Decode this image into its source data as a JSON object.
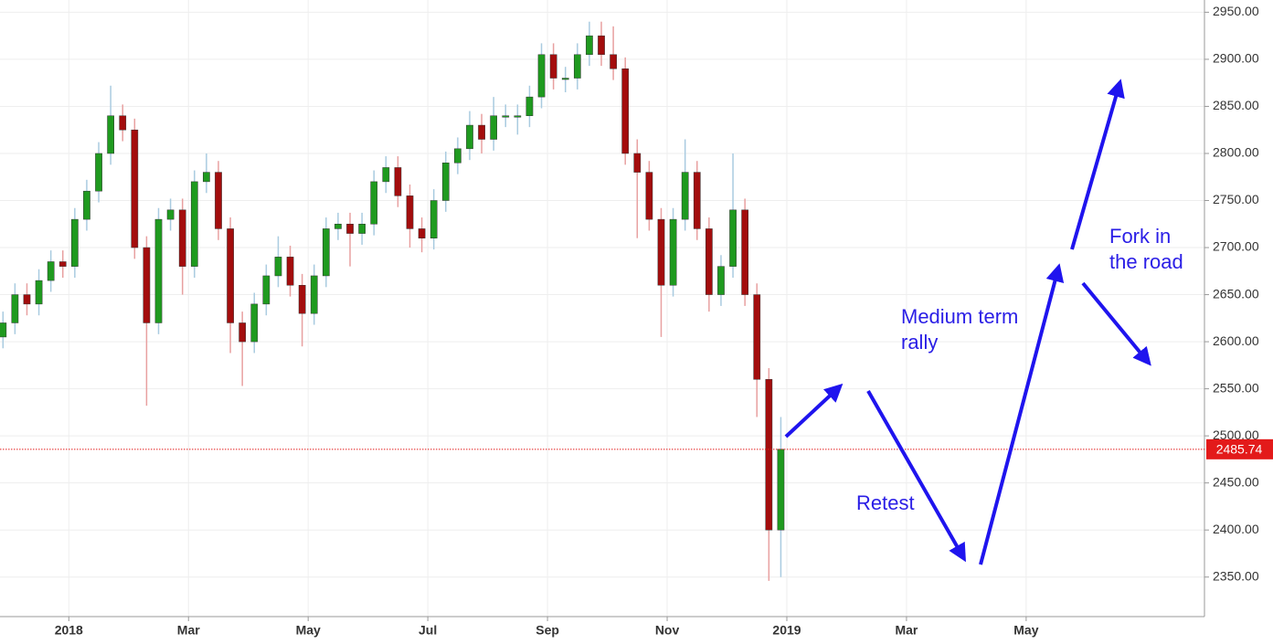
{
  "chart_data": {
    "type": "candlestick",
    "x": [
      -1.1,
      -0.9,
      -0.7,
      -0.5,
      -0.3,
      -0.1,
      0.1,
      0.3,
      0.5,
      0.7,
      0.9,
      1.1,
      1.3,
      1.5,
      1.7,
      1.9,
      2.1,
      2.3,
      2.5,
      2.7,
      2.9,
      3.1,
      3.3,
      3.5,
      3.7,
      3.9,
      4.1,
      4.3,
      4.5,
      4.7,
      4.9,
      5.1,
      5.3,
      5.5,
      5.7,
      5.9,
      6.1,
      6.3,
      6.5,
      6.7,
      6.9,
      7.1,
      7.3,
      7.5,
      7.7,
      7.9,
      8.1,
      8.3,
      8.5,
      8.7,
      8.9,
      9.1,
      9.3,
      9.5,
      9.7,
      9.9,
      10.1,
      10.3,
      10.5,
      10.7,
      10.9,
      11.1,
      11.3,
      11.5,
      11.7,
      11.9
    ],
    "open": [
      2605,
      2620,
      2650,
      2640,
      2665,
      2685,
      2680,
      2730,
      2760,
      2800,
      2840,
      2825,
      2700,
      2620,
      2730,
      2740,
      2680,
      2770,
      2780,
      2720,
      2620,
      2600,
      2640,
      2670,
      2690,
      2660,
      2630,
      2670,
      2720,
      2725,
      2715,
      2725,
      2770,
      2785,
      2755,
      2720,
      2710,
      2750,
      2790,
      2805,
      2830,
      2815,
      2840,
      2840,
      2840,
      2860,
      2905,
      2880,
      2880,
      2905,
      2925,
      2905,
      2890,
      2800,
      2780,
      2730,
      2660,
      2730,
      2780,
      2720,
      2650,
      2680,
      2740,
      2650,
      2560,
      2400
    ],
    "high": [
      2632,
      2662,
      2662,
      2677,
      2697,
      2697,
      2742,
      2772,
      2812,
      2872,
      2852,
      2837,
      2712,
      2742,
      2752,
      2752,
      2782,
      2800,
      2792,
      2732,
      2632,
      2652,
      2682,
      2712,
      2702,
      2672,
      2682,
      2732,
      2737,
      2737,
      2737,
      2782,
      2797,
      2797,
      2767,
      2732,
      2762,
      2802,
      2817,
      2845,
      2842,
      2860,
      2852,
      2852,
      2872,
      2917,
      2917,
      2892,
      2917,
      2940,
      2940,
      2935,
      2902,
      2815,
      2792,
      2742,
      2742,
      2815,
      2792,
      2732,
      2692,
      2800,
      2752,
      2662,
      2572,
      2520
    ],
    "low": [
      2593,
      2608,
      2628,
      2628,
      2653,
      2668,
      2668,
      2718,
      2748,
      2788,
      2813,
      2688,
      2532,
      2608,
      2718,
      2650,
      2668,
      2758,
      2708,
      2588,
      2553,
      2588,
      2628,
      2658,
      2648,
      2595,
      2618,
      2658,
      2708,
      2680,
      2703,
      2713,
      2758,
      2743,
      2700,
      2695,
      2698,
      2738,
      2778,
      2793,
      2800,
      2803,
      2828,
      2820,
      2828,
      2848,
      2868,
      2865,
      2868,
      2893,
      2893,
      2878,
      2788,
      2710,
      2718,
      2605,
      2648,
      2718,
      2708,
      2632,
      2638,
      2668,
      2638,
      2520,
      2346,
      2350
    ],
    "close": [
      2620,
      2650,
      2640,
      2665,
      2685,
      2680,
      2730,
      2760,
      2800,
      2840,
      2825,
      2700,
      2620,
      2730,
      2740,
      2680,
      2770,
      2780,
      2720,
      2620,
      2600,
      2640,
      2670,
      2690,
      2660,
      2630,
      2670,
      2720,
      2725,
      2715,
      2725,
      2770,
      2785,
      2755,
      2720,
      2710,
      2750,
      2790,
      2805,
      2830,
      2815,
      2840,
      2840,
      2840,
      2860,
      2905,
      2880,
      2880,
      2905,
      2925,
      2905,
      2890,
      2800,
      2780,
      2730,
      2660,
      2730,
      2780,
      2720,
      2650,
      2680,
      2740,
      2650,
      2560,
      2400,
      2485.74
    ],
    "up_color": "#1f9a1f",
    "down_color": "#a30d0d",
    "up_wick_color": "#a9cbe0",
    "down_wick_color": "#e8a0a0",
    "last_price": 2485.74,
    "last_price_color": "#e31a1a",
    "xlim": [
      -1.15,
      18.98
    ],
    "ylim": [
      2308,
      2963
    ],
    "xticks": [
      {
        "value": 0,
        "label": "2018"
      },
      {
        "value": 2,
        "label": "Mar"
      },
      {
        "value": 4,
        "label": "May"
      },
      {
        "value": 6,
        "label": "Jul"
      },
      {
        "value": 8,
        "label": "Sep"
      },
      {
        "value": 10,
        "label": "Nov"
      },
      {
        "value": 12,
        "label": "2019"
      },
      {
        "value": 14,
        "label": "Mar"
      },
      {
        "value": 16,
        "label": "May"
      }
    ],
    "yticks": [
      {
        "value": 2350,
        "label": "2350.00"
      },
      {
        "value": 2400,
        "label": "2400.00"
      },
      {
        "value": 2450,
        "label": "2450.00"
      },
      {
        "value": 2500,
        "label": "2500.00"
      },
      {
        "value": 2550,
        "label": "2550.00"
      },
      {
        "value": 2600,
        "label": "2600.00"
      },
      {
        "value": 2650,
        "label": "2650.00"
      },
      {
        "value": 2700,
        "label": "2700.00"
      },
      {
        "value": 2750,
        "label": "2750.00"
      },
      {
        "value": 2800,
        "label": "2800.00"
      },
      {
        "value": 2850,
        "label": "2850.00"
      },
      {
        "value": 2900,
        "label": "2900.00"
      },
      {
        "value": 2950,
        "label": "2950.00"
      }
    ],
    "grid": true,
    "annotations": [
      "Medium term rally",
      "Retest",
      "Fork in the road"
    ]
  }
}
